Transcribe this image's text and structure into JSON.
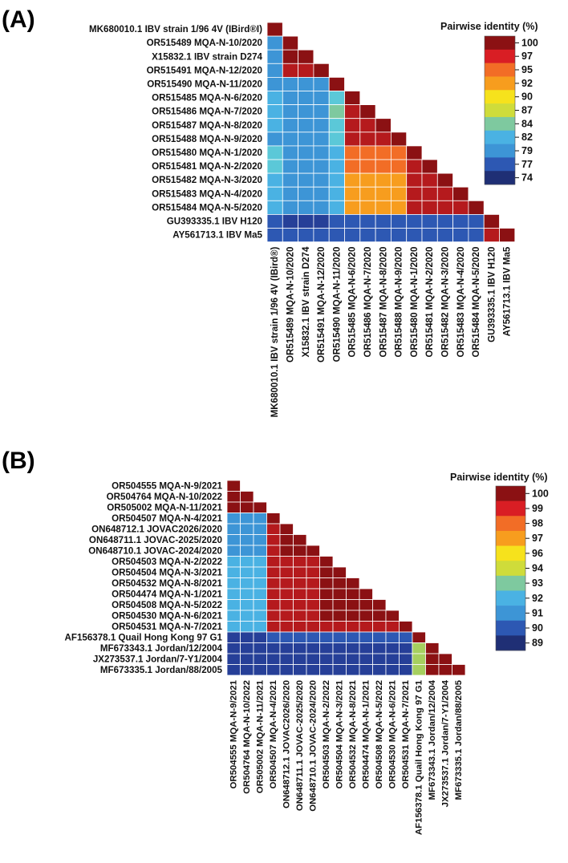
{
  "chart_data": [
    {
      "type": "heatmap",
      "panel": "(A)",
      "legend_title": "Pairwise identity (%)",
      "legend_ticks": [
        "100",
        "97",
        "95",
        "92",
        "90",
        "87",
        "84",
        "82",
        "79",
        "77",
        "74"
      ],
      "value_range": [
        73,
        100
      ],
      "labels": [
        "MK680010.1 IBV strain 1/96 4V (IBird®I)",
        "OR515489 MQA-N-10/2020",
        "X15832.1 IBV strain D274",
        "OR515491 MQA-N-12/2020",
        "OR515490 MQA-N-11/2020",
        "OR515485 MQA-N-6/2020",
        "OR515486 MQA-N-7/2020",
        "OR515487 MQA-N-8/2020",
        "OR515488 MQA-N-9/2020",
        "OR515480 MQA-N-1/2020",
        "OR515481 MQA-N-2/2020",
        "OR515482 MQA-N-3/2020",
        "OR515483 MQA-N-4/2020",
        "OR515484 MQA-N-5/2020",
        "GU393335.1 IBV H120",
        "AY561713.1 IBV Ma5"
      ],
      "col_labels": [
        "MK680010.1 IBV strain 1/96 4V (IBird®)",
        "OR515489 MQA-N-10/2020",
        "X15832.1 IBV strain D274",
        "OR515491 MQA-N-12/2020",
        "OR515490 MQA-N-11/2020",
        "OR515485 MQA-N-6/2020",
        "OR515486 MQA-N-7/2020",
        "OR515487 MQA-N-8/2020",
        "OR515488 MQA-N-9/2020",
        "OR515480 MQA-N-1/2020",
        "OR515481 MQA-N-2/2020",
        "OR515482 MQA-N-3/2020",
        "OR515483 MQA-N-4/2020",
        "OR515484 MQA-N-5/2020",
        "GU393335.1 IBV H120",
        "AY561713.1 IBV Ma5"
      ],
      "matrix": [
        [
          100
        ],
        [
          79,
          100
        ],
        [
          79,
          99,
          100
        ],
        [
          79,
          98,
          98,
          100
        ],
        [
          80,
          80,
          80,
          80,
          100
        ],
        [
          81,
          80,
          80,
          80,
          83,
          100
        ],
        [
          81,
          80,
          80,
          80,
          84,
          98,
          100
        ],
        [
          81,
          80,
          80,
          80,
          83,
          98,
          98,
          100
        ],
        [
          80,
          80,
          80,
          80,
          83,
          97,
          97,
          98,
          100
        ],
        [
          82,
          80,
          80,
          80,
          81,
          93,
          93,
          93,
          93,
          100
        ],
        [
          82,
          80,
          80,
          80,
          81,
          93,
          93,
          93,
          93,
          98,
          100
        ],
        [
          81,
          80,
          80,
          80,
          81,
          92,
          92,
          92,
          92,
          97,
          97,
          100
        ],
        [
          81,
          80,
          80,
          80,
          81,
          92,
          92,
          92,
          92,
          97,
          97,
          98,
          100
        ],
        [
          81,
          80,
          80,
          80,
          81,
          92,
          92,
          92,
          92,
          97,
          97,
          97,
          98,
          100
        ],
        [
          76,
          75,
          75,
          75,
          77,
          77,
          77,
          77,
          77,
          77,
          77,
          77,
          77,
          77,
          100
        ],
        [
          77,
          76,
          76,
          76,
          77,
          77,
          77,
          77,
          77,
          77,
          77,
          77,
          77,
          77,
          98,
          100
        ]
      ]
    },
    {
      "type": "heatmap",
      "panel": "(B)",
      "legend_title": "Pairwise identity (%)",
      "legend_ticks": [
        "100",
        "99",
        "98",
        "97",
        "96",
        "94",
        "93",
        "92",
        "91",
        "90",
        "89"
      ],
      "value_range": [
        88.5,
        100
      ],
      "labels": [
        "OR504555 MQA-N-9/2021",
        "OR504764 MQA-N-10/2022",
        "OR505002 MQA-N-11/2021",
        "OR504507 MQA-N-4/2021",
        "ON648712.1 JOVAC2026/2020",
        "ON648711.1 JOVAC-2025/2020",
        "ON648710.1 JOVAC-2024/2020",
        "OR504503 MQA-N-2/2022",
        "OR504504 MQA-N-3/2021",
        "OR504532 MQA-N-8/2021",
        "OR504474 MQA-N-1/2021",
        "OR504508 MQA-N-5/2022",
        "OR504530 MQA-N-6/2021",
        "OR504531 MQA-N-7/2021",
        "AF156378.1 Quail Hong Kong 97 G1",
        "MF673343.1 Jordan/12/2004",
        "JX273537.1 Jordan/7-Y1/2004",
        "MF673335.1 Jordan/88/2005"
      ],
      "col_labels": [
        "OR504555 MQA-N-9/2021",
        "OR504764 MQA-N-10/2022",
        "OR505002 MQA-N-11/2021",
        "OR504507 MQA-N-4/2021",
        "ON648712.1 JOVAC2026/2020",
        "ON648711.1 JOVAC-2025/2020",
        "ON648710.1 JOVAC-2024/2020",
        "OR504503 MQA-N-2/2022",
        "OR504504 MQA-N-3/2021",
        "OR504532 MQA-N-8/2021",
        "OR504474 MQA-N-1/2021",
        "OR504508 MQA-N-5/2022",
        "OR504530 MQA-N-6/2021",
        "OR504531 MQA-N-7/2021",
        "AF156378.1 Quail Hong Kong 97 G1",
        "MF673343.1 Jordan/12/2004",
        "JX273537.1 Jordan/7-Y1/2004",
        "MF673335.1 Jordan/88/2005"
      ],
      "matrix": [
        [
          100
        ],
        [
          100,
          100
        ],
        [
          100,
          100,
          100
        ],
        [
          91.5,
          91.5,
          91.5,
          100
        ],
        [
          91.5,
          91.5,
          91.5,
          99.2,
          100
        ],
        [
          91.5,
          91.5,
          91.5,
          99.2,
          99.8,
          100
        ],
        [
          91.5,
          91.5,
          91.5,
          99.2,
          99.8,
          99.8,
          100
        ],
        [
          92,
          92,
          92,
          99,
          99,
          99,
          99,
          100
        ],
        [
          92,
          92,
          92,
          99,
          99,
          99,
          99,
          99.7,
          100
        ],
        [
          92,
          92,
          92,
          99,
          99,
          99,
          99,
          99.6,
          99.6,
          100
        ],
        [
          92,
          92,
          92,
          99,
          99,
          99,
          99,
          99.6,
          99.6,
          99.6,
          100
        ],
        [
          92,
          92,
          92,
          99,
          99,
          99,
          99,
          99.4,
          99.4,
          99.4,
          99.4,
          100
        ],
        [
          92,
          92,
          92,
          99,
          99,
          99,
          99,
          99.4,
          99.4,
          99.4,
          99.4,
          99.6,
          100
        ],
        [
          92,
          92,
          92,
          98.8,
          98.8,
          98.8,
          98.8,
          99.2,
          99.2,
          99.2,
          99.2,
          99.2,
          99.2,
          100
        ],
        [
          89.6,
          89.6,
          89.6,
          89.8,
          89.8,
          89.8,
          89.8,
          89.8,
          89.8,
          89.8,
          89.8,
          89.8,
          89.8,
          89.8,
          100
        ],
        [
          89.4,
          89.4,
          89.4,
          89.6,
          89.6,
          89.6,
          89.6,
          89.6,
          89.6,
          89.6,
          89.6,
          89.6,
          89.6,
          89.6,
          94.2,
          100
        ],
        [
          89.4,
          89.4,
          89.4,
          89.6,
          89.6,
          89.6,
          89.6,
          89.6,
          89.6,
          89.6,
          89.6,
          89.6,
          89.6,
          89.6,
          94.2,
          99.6,
          100
        ],
        [
          89.4,
          89.4,
          89.4,
          89.6,
          89.6,
          89.6,
          89.6,
          89.6,
          89.6,
          89.6,
          89.6,
          89.6,
          89.6,
          89.6,
          94.2,
          99.4,
          99.4,
          100
        ]
      ]
    }
  ],
  "colors": {
    "scale": [
      "#1f2f75",
      "#263f98",
      "#2d58b3",
      "#3476c6",
      "#3d95d6",
      "#4ab2e3",
      "#5bc8d8",
      "#7ec99f",
      "#a6cf5f",
      "#cfdc3a",
      "#f6e21c",
      "#f9c11a",
      "#f79d1e",
      "#f26d26",
      "#e83b26",
      "#d91e24",
      "#b51a1d",
      "#8b1113"
    ]
  }
}
